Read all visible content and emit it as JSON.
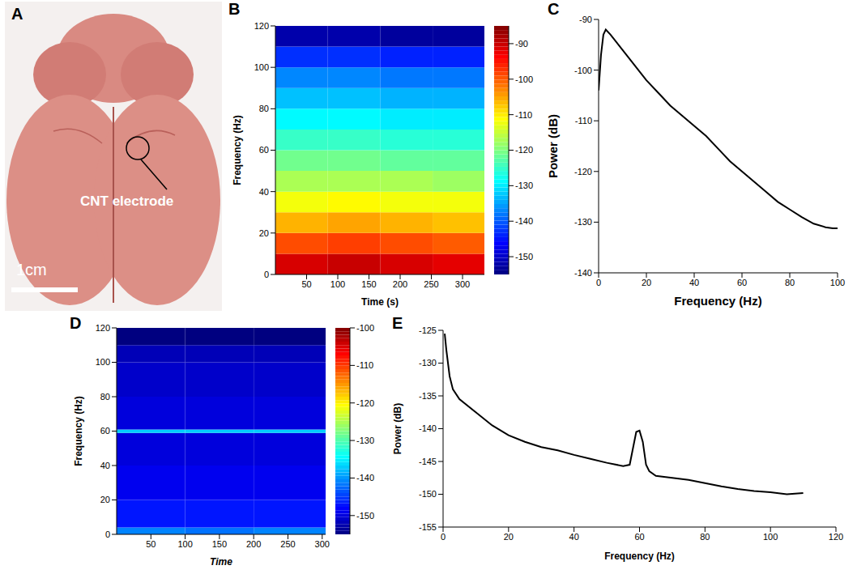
{
  "panel_a": {
    "letter": "A",
    "annotation": "CNT electrode",
    "scale_bar": "1cm"
  },
  "chart_data": [
    {
      "letter": "B",
      "type": "heatmap",
      "x_label": "Time (s)",
      "y_label": "Frequency (Hz)",
      "xlim": [
        0,
        335
      ],
      "xticks": [
        50,
        100,
        150,
        200,
        250,
        300
      ],
      "ylim": [
        0,
        120
      ],
      "yticks": [
        0,
        20,
        40,
        60,
        80,
        100,
        120
      ],
      "x_bins": [
        0,
        84,
        168,
        252,
        335
      ],
      "y_bins": [
        0,
        10,
        20,
        30,
        40,
        50,
        60,
        70,
        80,
        90,
        100,
        110,
        120
      ],
      "cells": [
        [
          -91,
          -90,
          -91,
          -92
        ],
        [
          -99,
          -98,
          -99,
          -100
        ],
        [
          -106,
          -105,
          -106,
          -107
        ],
        [
          -112,
          -111,
          -112,
          -112
        ],
        [
          -117,
          -117,
          -117,
          -118
        ],
        [
          -121,
          -121,
          -122,
          -122
        ],
        [
          -125,
          -125,
          -126,
          -126
        ],
        [
          -129,
          -129,
          -130,
          -130
        ],
        [
          -133,
          -133,
          -134,
          -134
        ],
        [
          -137,
          -137,
          -138,
          -138
        ],
        [
          -143,
          -143,
          -144,
          -144
        ],
        [
          -152,
          -152,
          -153,
          -153
        ]
      ],
      "colorbar": {
        "range": [
          -155,
          -85
        ],
        "ticks": [
          -150,
          -140,
          -130,
          -120,
          -110,
          -100,
          -90
        ]
      }
    },
    {
      "letter": "C",
      "type": "line",
      "x_label": "Frequency (Hz)",
      "y_label": "Power (dB)",
      "xlim": [
        0,
        100
      ],
      "xticks": [
        0,
        20,
        40,
        60,
        80,
        100
      ],
      "ylim": [
        -140,
        -90
      ],
      "yticks": [
        -140,
        -130,
        -120,
        -110,
        -100,
        -90
      ],
      "x": [
        0,
        1,
        2,
        3,
        5,
        10,
        15,
        20,
        25,
        30,
        35,
        40,
        45,
        50,
        55,
        60,
        65,
        70,
        75,
        80,
        85,
        90,
        95,
        98,
        100
      ],
      "values": [
        -104,
        -97,
        -93,
        -92,
        -93,
        -96,
        -99,
        -102,
        -104.5,
        -107,
        -109,
        -111,
        -113,
        -115.5,
        -118,
        -120,
        -122,
        -124,
        -126,
        -127.5,
        -129,
        -130.3,
        -131,
        -131.2,
        -131.2
      ],
      "color": "#000000"
    },
    {
      "letter": "D",
      "type": "heatmap",
      "x_label": "Time",
      "y_label": "Frequency (Hz)",
      "xlim": [
        0,
        305
      ],
      "xticks": [
        50,
        100,
        150,
        200,
        250,
        300
      ],
      "ylim": [
        0,
        120
      ],
      "yticks": [
        0,
        20,
        40,
        60,
        80,
        100,
        120
      ],
      "x_bins": [
        0,
        100,
        200,
        305
      ],
      "y_bins": [
        0,
        4,
        20,
        40,
        59,
        61,
        80,
        100,
        110,
        120
      ],
      "cells": [
        [
          -141,
          -142,
          -141
        ],
        [
          -147,
          -147,
          -147
        ],
        [
          -149,
          -149,
          -149
        ],
        [
          -150,
          -150,
          -150
        ],
        [
          -137,
          -137,
          -137
        ],
        [
          -150,
          -150,
          -150
        ],
        [
          -151,
          -151,
          -151
        ],
        [
          -152,
          -152,
          -152
        ],
        [
          -155,
          -155,
          -155
        ]
      ],
      "colorbar": {
        "range": [
          -155,
          -100
        ],
        "ticks": [
          -150,
          -140,
          -130,
          -120,
          -110,
          -100
        ]
      }
    },
    {
      "letter": "E",
      "type": "line",
      "x_label": "Frequency (Hz)",
      "y_label": "Power (dB)",
      "xlim": [
        0,
        120
      ],
      "xticks": [
        0,
        20,
        40,
        60,
        80,
        100,
        120
      ],
      "ylim": [
        -155,
        -125
      ],
      "yticks": [
        -155,
        -150,
        -145,
        -140,
        -135,
        -130,
        -125
      ],
      "x": [
        0.5,
        1,
        2,
        3,
        5,
        10,
        15,
        20,
        25,
        30,
        35,
        40,
        45,
        50,
        55,
        57,
        58,
        59,
        60,
        61,
        62,
        63,
        65,
        70,
        75,
        80,
        85,
        90,
        95,
        100,
        105,
        110
      ],
      "values": [
        -125.5,
        -128,
        -132,
        -134,
        -135.5,
        -137.5,
        -139.5,
        -141,
        -142,
        -142.8,
        -143.3,
        -144,
        -144.6,
        -145.2,
        -145.7,
        -145.5,
        -143,
        -140.5,
        -140.3,
        -142,
        -145.5,
        -146.5,
        -147.2,
        -147.5,
        -147.8,
        -148.3,
        -148.8,
        -149.2,
        -149.5,
        -149.7,
        -150,
        -149.8
      ],
      "color": "#000000"
    }
  ]
}
